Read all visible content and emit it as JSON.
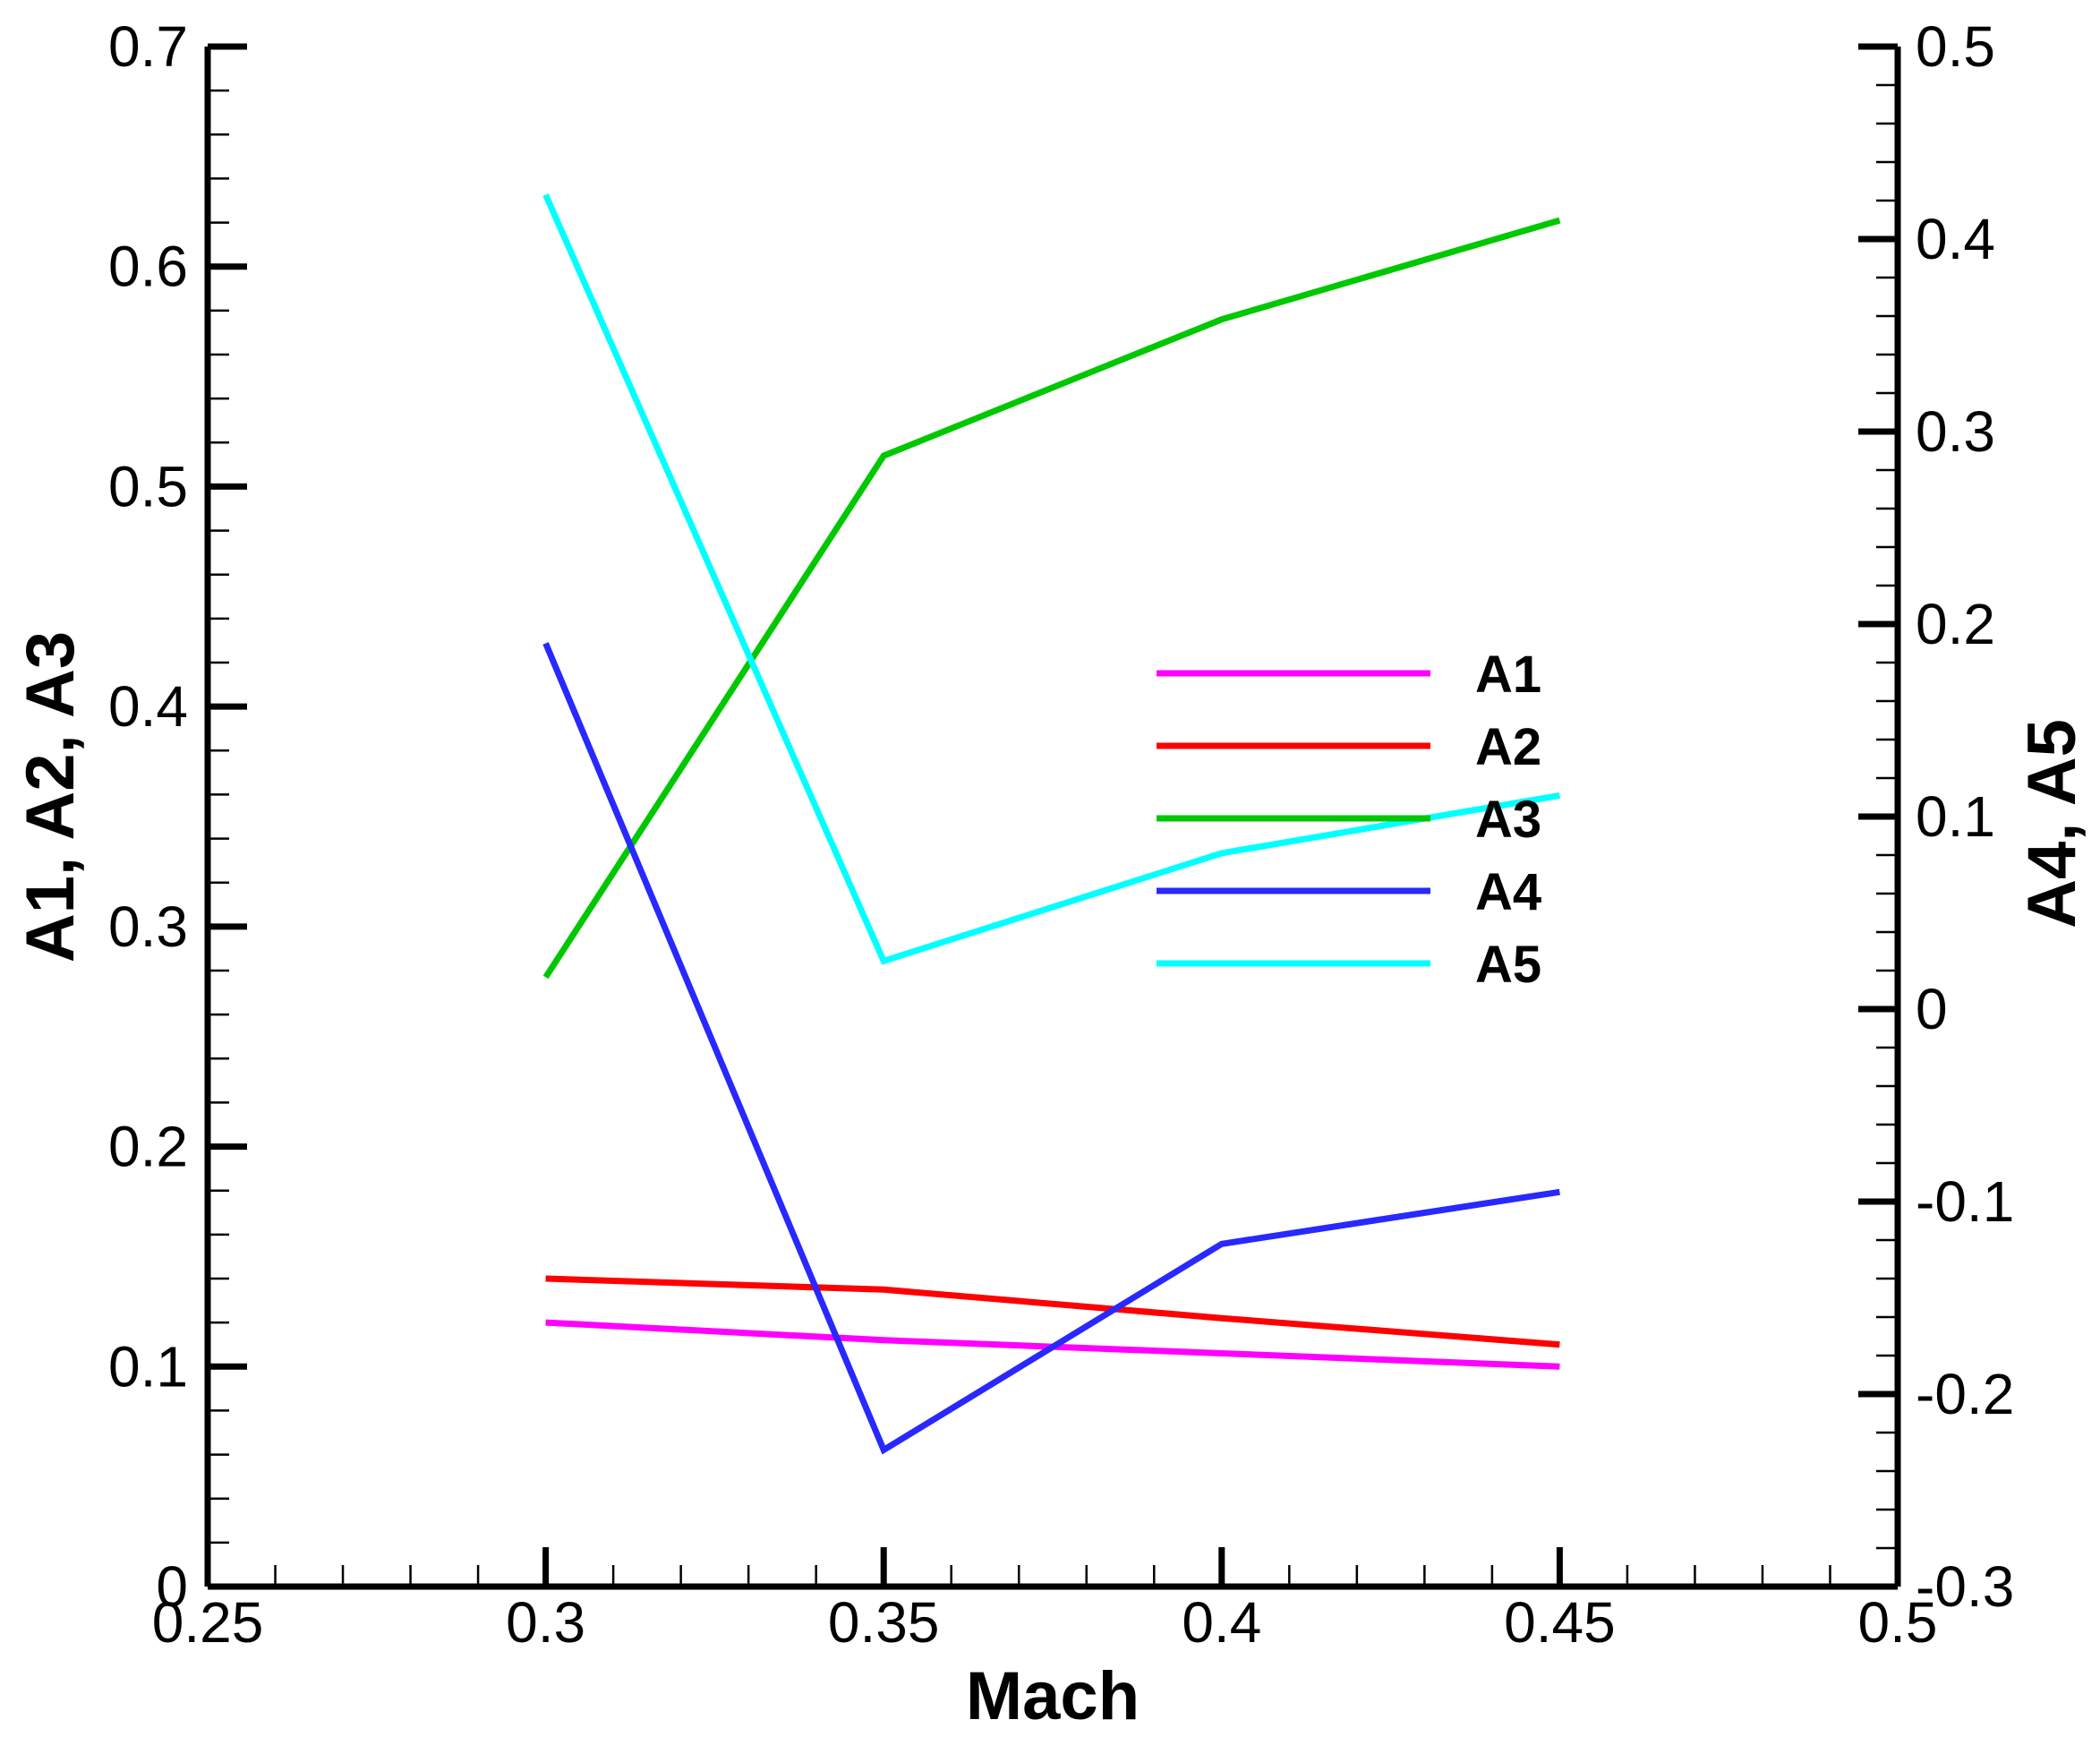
{
  "chart_data": {
    "type": "line",
    "xlabel": "Mach",
    "ylabel_left": "A1, A2, A3",
    "ylabel_right": "A4, A5",
    "xlim": [
      0.25,
      0.5
    ],
    "ylim_left": [
      0,
      0.7
    ],
    "ylim_right": [
      -0.3,
      0.5
    ],
    "x_ticks": [
      "0.25",
      "0.3",
      "0.35",
      "0.4",
      "0.45",
      "0.5"
    ],
    "y_left_ticks": [
      "0",
      "0.1",
      "0.2",
      "0.3",
      "0.4",
      "0.5",
      "0.6",
      "0.7"
    ],
    "y_right_ticks": [
      "-0.3",
      "-0.2",
      "-0.1",
      "0",
      "0.1",
      "0.2",
      "0.3",
      "0.4",
      "0.5"
    ],
    "grid": false,
    "legend_position": "center-right",
    "x": [
      0.3,
      0.35,
      0.4,
      0.45
    ],
    "series": [
      {
        "name": "A1",
        "axis": "left",
        "color": "#ff00ff",
        "values": [
          0.12,
          0.112,
          0.106,
          0.1
        ]
      },
      {
        "name": "A2",
        "axis": "left",
        "color": "#ff0000",
        "values": [
          0.14,
          0.135,
          0.122,
          0.11
        ]
      },
      {
        "name": "A3",
        "axis": "left",
        "color": "#00c800",
        "values": [
          0.277,
          0.514,
          0.576,
          0.621
        ]
      },
      {
        "name": "A4",
        "axis": "right",
        "color": "#2828ff",
        "values": [
          0.19,
          -0.229,
          -0.122,
          -0.095
        ]
      },
      {
        "name": "A5",
        "axis": "right",
        "color": "#00ffff",
        "values": [
          0.423,
          0.025,
          0.081,
          0.111
        ]
      }
    ]
  }
}
